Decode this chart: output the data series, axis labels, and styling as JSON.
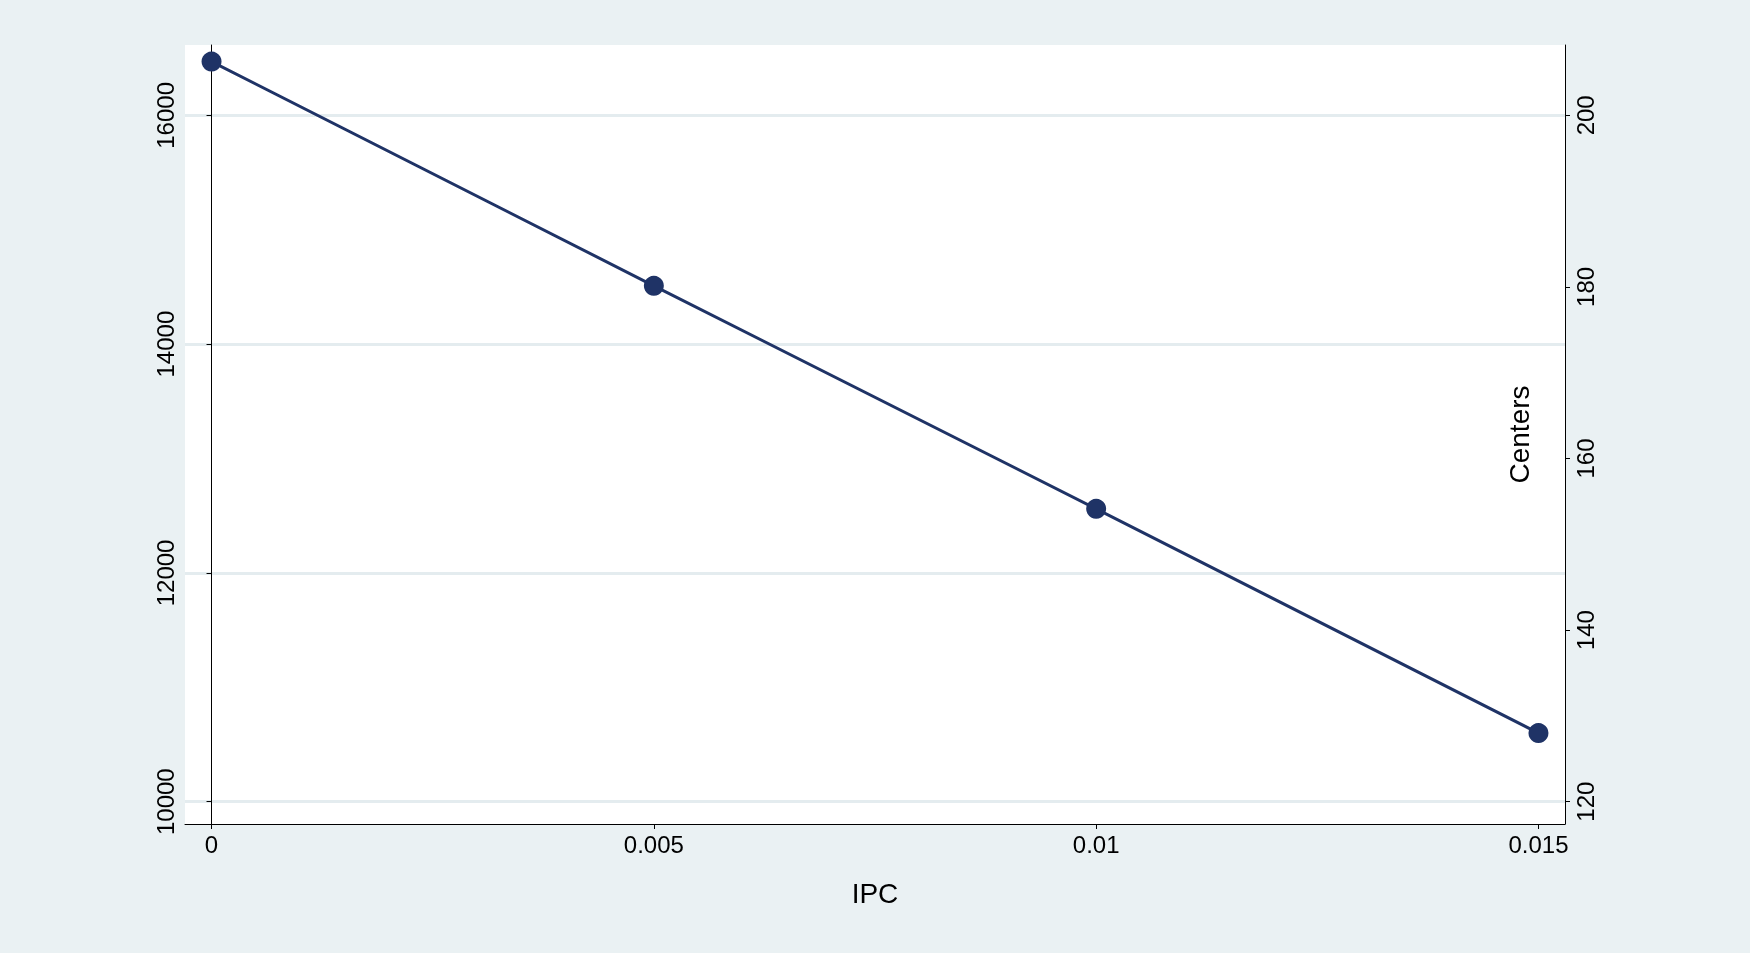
{
  "chart_data": {
    "type": "line",
    "xlabel": "IPC",
    "y2label": "Centers",
    "x": [
      0,
      0.005,
      0.01,
      0.015
    ],
    "series": [
      {
        "color": "#1f3366",
        "values": [
          16470,
          14510,
          12560,
          10600
        ]
      }
    ],
    "xlim": [
      -0.0003,
      0.0153
    ],
    "xticks": [
      0,
      0.005,
      0.01,
      0.015
    ],
    "ylim": [
      9805,
      16615
    ],
    "yticks": [
      10000,
      12000,
      14000,
      16000
    ],
    "y2lim": [
      117.4,
      208.2
    ],
    "y2ticks": [
      120,
      140,
      160,
      180,
      200
    ],
    "grid": "y",
    "marker": "circle",
    "line_style": "solid"
  }
}
